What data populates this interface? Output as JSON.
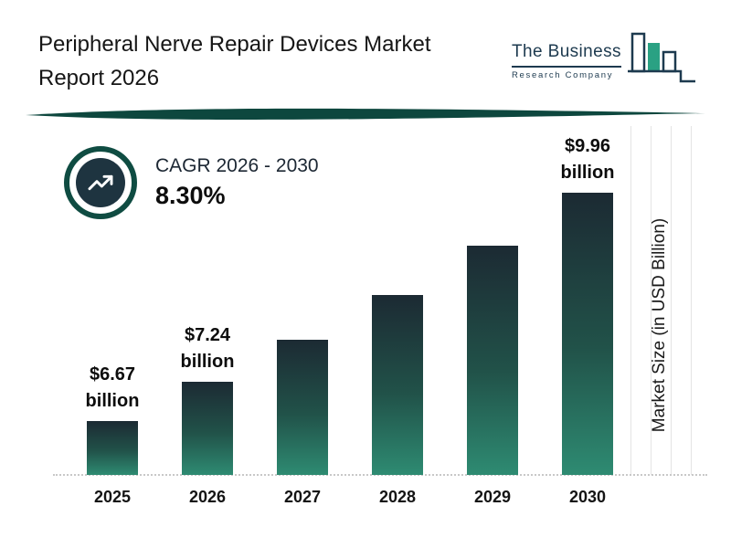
{
  "header": {
    "title_line1": "Peripheral Nerve Repair Devices Market",
    "title_line2": "Report 2026",
    "logo": {
      "name": "The Business",
      "subname": "Research Company"
    }
  },
  "cagr": {
    "label": "CAGR 2026 - 2030",
    "value": "8.30%"
  },
  "chart_data": {
    "type": "bar",
    "title": "Peripheral Nerve Repair Devices Market Report 2026",
    "xlabel": "",
    "ylabel": "Market Size (in USD Billion)",
    "categories": [
      "2025",
      "2026",
      "2027",
      "2028",
      "2029",
      "2030"
    ],
    "values": [
      6.67,
      7.24,
      7.84,
      8.49,
      9.2,
      9.96
    ],
    "value_labels": [
      "$6.67 billion",
      "$7.24 billion",
      "",
      "",
      "",
      "$9.96 billion"
    ],
    "ylim": [
      5.9,
      10.0
    ],
    "legend": "none",
    "grid": "faint vertical lines at right edge; dotted baseline",
    "colors": {
      "accent": "#0f4c42",
      "bar_gradient_top": "#1c2a33",
      "bar_gradient_bottom": "#2e8b72",
      "logo_navy": "#1d3a4f",
      "logo_green": "#2aa183"
    },
    "bars": [
      {
        "year": "2025",
        "value": 6.67,
        "label_top": "$6.67",
        "label_bottom": "billion",
        "estimated": false
      },
      {
        "year": "2026",
        "value": 7.24,
        "label_top": "$7.24",
        "label_bottom": "billion",
        "estimated": false
      },
      {
        "year": "2027",
        "value": 7.84,
        "label_top": "",
        "label_bottom": "",
        "estimated": true
      },
      {
        "year": "2028",
        "value": 8.49,
        "label_top": "",
        "label_bottom": "",
        "estimated": true
      },
      {
        "year": "2029",
        "value": 9.2,
        "label_top": "",
        "label_bottom": "",
        "estimated": true
      },
      {
        "year": "2030",
        "value": 9.96,
        "label_top": "$9.96",
        "label_bottom": "billion",
        "estimated": false
      }
    ]
  }
}
